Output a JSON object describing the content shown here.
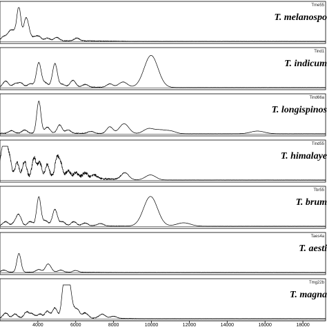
{
  "chart_data": {
    "type": "line",
    "title": "",
    "xlabel": "",
    "ylabel": "",
    "xlim": [
      2000,
      19200
    ],
    "x_ticks": [
      4000,
      6000,
      8000,
      10000,
      12000,
      14000,
      16000,
      18000
    ],
    "x_tick_labels": [
      "4000",
      "6000",
      "8000",
      "10000",
      "12000",
      "14000",
      "16000",
      "18000"
    ],
    "grid": false,
    "panels": [
      {
        "sample_id": "Tme55",
        "species": "T. melanospo",
        "baseline_noise": 0.06,
        "noise_end": 6200,
        "peaks": [
          {
            "x": 2200,
            "h": 0.12,
            "w": 15
          },
          {
            "x": 2450,
            "h": 0.1,
            "w": 15
          },
          {
            "x": 2600,
            "h": 0.22,
            "w": 15
          },
          {
            "x": 2800,
            "h": 0.15,
            "w": 15
          },
          {
            "x": 3000,
            "h": 0.95,
            "w": 12
          },
          {
            "x": 3350,
            "h": 0.55,
            "w": 12
          },
          {
            "x": 3500,
            "h": 0.28,
            "w": 12
          },
          {
            "x": 3800,
            "h": 0.1,
            "w": 15
          },
          {
            "x": 4050,
            "h": 0.12,
            "w": 15
          },
          {
            "x": 4500,
            "h": 0.08,
            "w": 15
          },
          {
            "x": 5000,
            "h": 0.1,
            "w": 15
          },
          {
            "x": 6050,
            "h": 0.08,
            "w": 15
          }
        ]
      },
      {
        "sample_id": "Tind1",
        "species": "T. indicum",
        "baseline_noise": 0.05,
        "noise_end": 6500,
        "peaks": [
          {
            "x": 2300,
            "h": 0.18,
            "w": 15
          },
          {
            "x": 2800,
            "h": 0.1,
            "w": 15
          },
          {
            "x": 3100,
            "h": 0.12,
            "w": 15
          },
          {
            "x": 3600,
            "h": 0.1,
            "w": 15
          },
          {
            "x": 4050,
            "h": 0.72,
            "w": 14
          },
          {
            "x": 4400,
            "h": 0.12,
            "w": 15
          },
          {
            "x": 4900,
            "h": 0.7,
            "w": 14
          },
          {
            "x": 5300,
            "h": 0.08,
            "w": 15
          },
          {
            "x": 5850,
            "h": 0.2,
            "w": 16
          },
          {
            "x": 6500,
            "h": 0.08,
            "w": 16
          },
          {
            "x": 7800,
            "h": 0.1,
            "w": 18
          },
          {
            "x": 8500,
            "h": 0.16,
            "w": 25
          },
          {
            "x": 9980,
            "h": 0.95,
            "w": 40
          }
        ]
      },
      {
        "sample_id": "Tind66a",
        "species": "T. longispinos",
        "baseline_noise": 0.05,
        "noise_end": 6000,
        "peaks": [
          {
            "x": 2600,
            "h": 0.08,
            "w": 15
          },
          {
            "x": 3300,
            "h": 0.1,
            "w": 15
          },
          {
            "x": 4050,
            "h": 0.95,
            "w": 12
          },
          {
            "x": 4500,
            "h": 0.18,
            "w": 15
          },
          {
            "x": 5150,
            "h": 0.25,
            "w": 14
          },
          {
            "x": 5600,
            "h": 0.1,
            "w": 15
          },
          {
            "x": 6800,
            "h": 0.06,
            "w": 18
          },
          {
            "x": 7800,
            "h": 0.2,
            "w": 18
          },
          {
            "x": 8500,
            "h": 0.22,
            "w": 25
          },
          {
            "x": 8700,
            "h": 0.1,
            "w": 25
          },
          {
            "x": 9850,
            "h": 0.15,
            "w": 30
          },
          {
            "x": 10450,
            "h": 0.1,
            "w": 30
          },
          {
            "x": 11000,
            "h": 0.08,
            "w": 30
          },
          {
            "x": 15600,
            "h": 0.08,
            "w": 40
          }
        ]
      },
      {
        "sample_id": "Tind55",
        "species": "T. himalaye",
        "baseline_noise": 0.22,
        "noise_end": 6300,
        "peaks": [
          {
            "x": 2100,
            "h": 0.7,
            "w": 12
          },
          {
            "x": 2300,
            "h": 0.85,
            "w": 12
          },
          {
            "x": 2500,
            "h": 0.55,
            "w": 12
          },
          {
            "x": 2900,
            "h": 0.45,
            "w": 12
          },
          {
            "x": 3300,
            "h": 0.5,
            "w": 12
          },
          {
            "x": 3800,
            "h": 0.6,
            "w": 12
          },
          {
            "x": 4100,
            "h": 0.45,
            "w": 12
          },
          {
            "x": 4500,
            "h": 0.4,
            "w": 12
          },
          {
            "x": 5000,
            "h": 0.55,
            "w": 12
          },
          {
            "x": 5200,
            "h": 0.4,
            "w": 12
          },
          {
            "x": 5600,
            "h": 0.2,
            "w": 14
          },
          {
            "x": 6000,
            "h": 0.15,
            "w": 14
          },
          {
            "x": 6500,
            "h": 0.15,
            "w": 16
          },
          {
            "x": 7000,
            "h": 0.1,
            "w": 16
          },
          {
            "x": 8600,
            "h": 0.2,
            "w": 22
          },
          {
            "x": 9950,
            "h": 0.15,
            "w": 30
          }
        ]
      },
      {
        "sample_id": "Tbr55",
        "species": "T. brum",
        "baseline_noise": 0.06,
        "noise_end": 6300,
        "peaks": [
          {
            "x": 2300,
            "h": 0.12,
            "w": 15
          },
          {
            "x": 2800,
            "h": 0.1,
            "w": 15
          },
          {
            "x": 3000,
            "h": 0.3,
            "w": 14
          },
          {
            "x": 3600,
            "h": 0.12,
            "w": 15
          },
          {
            "x": 4050,
            "h": 0.85,
            "w": 12
          },
          {
            "x": 4400,
            "h": 0.15,
            "w": 15
          },
          {
            "x": 4900,
            "h": 0.48,
            "w": 14
          },
          {
            "x": 5300,
            "h": 0.12,
            "w": 15
          },
          {
            "x": 5900,
            "h": 0.12,
            "w": 15
          },
          {
            "x": 6500,
            "h": 0.08,
            "w": 16
          },
          {
            "x": 7300,
            "h": 0.07,
            "w": 18
          },
          {
            "x": 9950,
            "h": 0.88,
            "w": 40
          },
          {
            "x": 11700,
            "h": 0.1,
            "w": 40
          }
        ]
      },
      {
        "sample_id": "Taes4a",
        "species": "T. aesti",
        "baseline_noise": 0.03,
        "noise_end": 5500,
        "peaks": [
          {
            "x": 2200,
            "h": 0.06,
            "w": 15
          },
          {
            "x": 3000,
            "h": 0.55,
            "w": 12
          },
          {
            "x": 4050,
            "h": 0.08,
            "w": 15
          },
          {
            "x": 4500,
            "h": 0.18,
            "w": 14
          },
          {
            "x": 4650,
            "h": 0.1,
            "w": 14
          },
          {
            "x": 5200,
            "h": 0.06,
            "w": 15
          },
          {
            "x": 6000,
            "h": 0.05,
            "w": 16
          }
        ]
      },
      {
        "sample_id": "Tmg22b",
        "species": "T. magna",
        "baseline_noise": 0.07,
        "noise_end": 6500,
        "peaks": [
          {
            "x": 2300,
            "h": 0.15,
            "w": 14
          },
          {
            "x": 2800,
            "h": 0.12,
            "w": 14
          },
          {
            "x": 3400,
            "h": 0.18,
            "w": 14
          },
          {
            "x": 3700,
            "h": 0.12,
            "w": 14
          },
          {
            "x": 4100,
            "h": 0.12,
            "w": 14
          },
          {
            "x": 4500,
            "h": 0.2,
            "w": 14
          },
          {
            "x": 4900,
            "h": 0.3,
            "w": 14
          },
          {
            "x": 5350,
            "h": 0.7,
            "w": 12
          },
          {
            "x": 5450,
            "h": 0.5,
            "w": 12
          },
          {
            "x": 5650,
            "h": 0.95,
            "w": 12
          },
          {
            "x": 5850,
            "h": 0.25,
            "w": 14
          },
          {
            "x": 6100,
            "h": 0.22,
            "w": 14
          },
          {
            "x": 6500,
            "h": 0.15,
            "w": 16
          },
          {
            "x": 7400,
            "h": 0.12,
            "w": 18
          },
          {
            "x": 8000,
            "h": 0.06,
            "w": 18
          }
        ]
      }
    ]
  }
}
